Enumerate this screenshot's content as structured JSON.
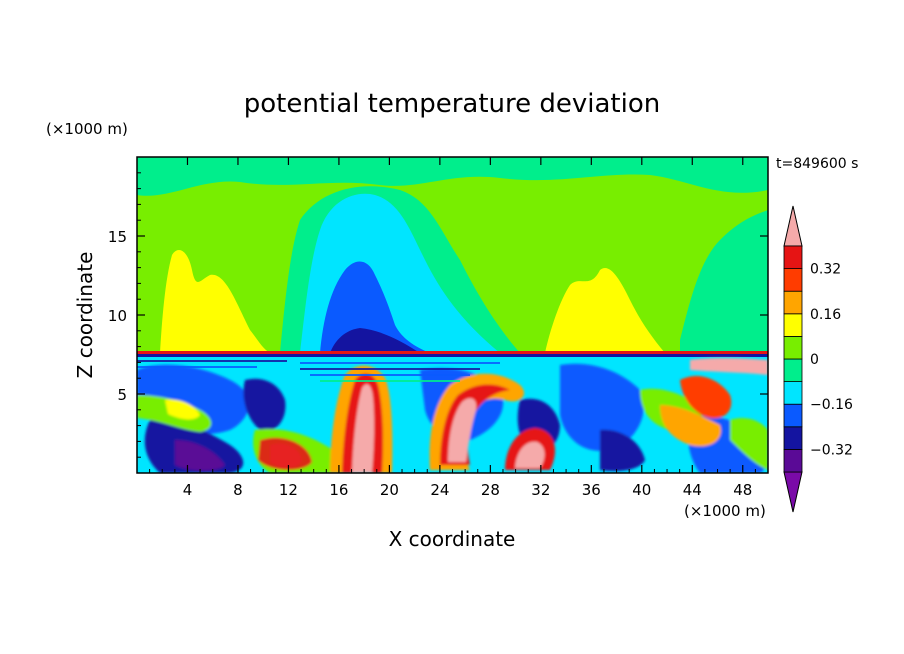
{
  "chart_data": {
    "type": "heatmap",
    "title": "potential temperature deviation",
    "xlabel": "X coordinate",
    "ylabel": "Z coordinate",
    "x_unit": "(×1000 m)",
    "z_unit": "(×1000 m)",
    "time_label": "t=849600 s",
    "xlim": [
      0,
      50
    ],
    "ylim": [
      0,
      20
    ],
    "x_ticks": [
      4,
      8,
      12,
      16,
      20,
      24,
      28,
      32,
      36,
      40,
      44,
      48
    ],
    "y_ticks": [
      5,
      10,
      15
    ],
    "colorbar": {
      "levels": [
        -0.4,
        -0.32,
        -0.24,
        -0.16,
        -0.08,
        0,
        0.08,
        0.16,
        0.24,
        0.32,
        0.4
      ],
      "labeled_levels": [
        0.32,
        0.16,
        0,
        -0.16,
        -0.32
      ],
      "labels": [
        "0.32",
        "0.16",
        "0",
        "−0.16",
        "−0.32"
      ],
      "colors": [
        "#7a0aa8",
        "#5a0a96",
        "#1414a0",
        "#0a5aff",
        "#00e5ff",
        "#00ee8c",
        "#78ee00",
        "#ffff00",
        "#ffa500",
        "#ff3c00",
        "#e61414",
        "#f5aaaa"
      ],
      "extend": "both"
    },
    "description_regions": [
      {
        "region": "upper layer z>8",
        "dominant": "weak positive (0 to 0.08)",
        "features": [
          "yellow maxima near x=4 and x=34-38",
          "cyan-blue negative plume centred x~18"
        ]
      },
      {
        "region": "lower layer z<8",
        "dominant": "turbulent mixed anomalies",
        "features": [
          "strong positive plume x~18",
          "positive plumes x~26-29",
          "negative pockets x~2-10"
        ]
      }
    ]
  }
}
